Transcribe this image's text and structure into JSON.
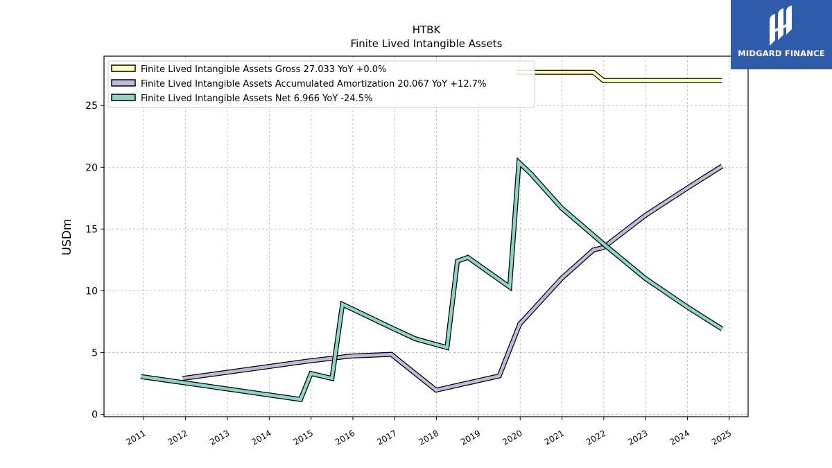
{
  "chart_data": {
    "type": "line",
    "title": "HTBK",
    "subtitle": "Finite Lived Intangible Assets",
    "ylabel": "USDm",
    "xlabel": "",
    "ylim": [
      -0.2,
      29
    ],
    "xlim": [
      2010.05,
      2025.45
    ],
    "grid": true,
    "legend_position": "top-left",
    "x_ticks": [
      "2011",
      "2012",
      "2013",
      "2014",
      "2015",
      "2016",
      "2017",
      "2018",
      "2019",
      "2020",
      "2021",
      "2022",
      "2023",
      "2024",
      "2025"
    ],
    "y_ticks": [
      "0",
      "5",
      "10",
      "15",
      "20",
      "25"
    ],
    "series": [
      {
        "name": "Finite Lived Intangible Assets Gross",
        "legend_label": "Finite Lived Intangible Assets Gross  27.033 YoY +0.0%",
        "color": "#ffffb3",
        "points": [
          [
            2019.92,
            27.7
          ],
          [
            2021.75,
            27.7
          ],
          [
            2021.99,
            27.03
          ],
          [
            2024.83,
            27.03
          ]
        ]
      },
      {
        "name": "Finite Lived Intangible Assets Accumulated Amortization",
        "legend_label": "Finite Lived Intangible Assets Accumulated Amortization  20.067 YoY +12.7%",
        "color": "#bebada",
        "points": [
          [
            2011.93,
            2.9
          ],
          [
            2014.92,
            4.3
          ],
          [
            2015.92,
            4.7
          ],
          [
            2016.92,
            4.85
          ],
          [
            2017.99,
            1.95
          ],
          [
            2019.5,
            3.1
          ],
          [
            2019.99,
            7.3
          ],
          [
            2020.99,
            11.0
          ],
          [
            2021.75,
            13.3
          ],
          [
            2021.99,
            13.5
          ],
          [
            2022.99,
            16.1
          ],
          [
            2023.99,
            18.3
          ],
          [
            2024.83,
            20.1
          ]
        ]
      },
      {
        "name": "Finite Lived Intangible Assets Net",
        "legend_label": "Finite Lived Intangible Assets Net  6.966 YoY -24.5%",
        "color": "#8dd3c7",
        "points": [
          [
            2010.93,
            3.05
          ],
          [
            2014.75,
            1.2
          ],
          [
            2015.0,
            3.3
          ],
          [
            2015.5,
            2.9
          ],
          [
            2015.75,
            8.9
          ],
          [
            2016.99,
            6.9
          ],
          [
            2017.5,
            6.1
          ],
          [
            2018.25,
            5.4
          ],
          [
            2018.5,
            12.4
          ],
          [
            2018.75,
            12.7
          ],
          [
            2019.75,
            10.3
          ],
          [
            2019.97,
            20.4
          ],
          [
            2020.25,
            19.5
          ],
          [
            2020.99,
            16.7
          ],
          [
            2021.99,
            13.8
          ],
          [
            2022.99,
            11.0
          ],
          [
            2023.99,
            8.7
          ],
          [
            2024.83,
            6.9
          ]
        ]
      }
    ]
  },
  "brand": {
    "name": "MIDGARD FINANCE",
    "bg_color": "#2f5caa"
  }
}
